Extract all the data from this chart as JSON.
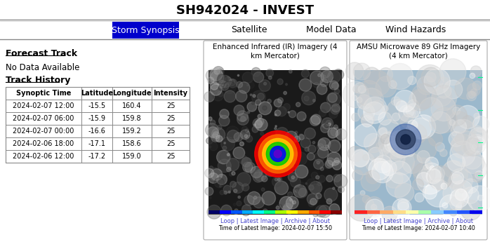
{
  "title": "SH942024 - INVEST",
  "nav_tabs": [
    "Storm Synopsis",
    "Satellite",
    "Model Data",
    "Wind Hazards"
  ],
  "active_tab": "Storm Synopsis",
  "active_tab_bg": "#0000CC",
  "active_tab_fg": "#FFFFFF",
  "inactive_tab_fg": "#000000",
  "forecast_track_label": "Forecast Track",
  "no_data_label": "No Data Available",
  "track_history_label": "Track History",
  "table_headers": [
    "Synoptic Time",
    "Latitude",
    "Longitude",
    "Intensity"
  ],
  "table_rows": [
    [
      "2024-02-07 12:00",
      "-15.5",
      "160.4",
      "25"
    ],
    [
      "2024-02-07 06:00",
      "-15.9",
      "159.8",
      "25"
    ],
    [
      "2024-02-07 00:00",
      "-16.6",
      "159.2",
      "25"
    ],
    [
      "2024-02-06 18:00",
      "-17.1",
      "158.6",
      "25"
    ],
    [
      "2024-02-06 12:00",
      "-17.2",
      "159.0",
      "25"
    ]
  ],
  "ir_title": "Enhanced Infrared (IR) Imagery (4\nkm Mercator)",
  "mw_title": "AMSU Microwave 89 GHz Imagery\n(4 km Mercator)",
  "ir_links": "Loop | Latest Image | Archive | About",
  "ir_time": "Time of Latest Image: 2024-02-07 15:50",
  "mw_links": "Loop | Latest Image | Archive | About",
  "mw_time": "Time of Latest Image: 2024-02-07 10:40",
  "bg_color": "#FFFFFF",
  "border_color": "#AAAAAA",
  "table_border": "#888888",
  "title_fontsize": 13,
  "nav_fontsize": 9,
  "body_fontsize": 8,
  "link_color": "#4444CC"
}
